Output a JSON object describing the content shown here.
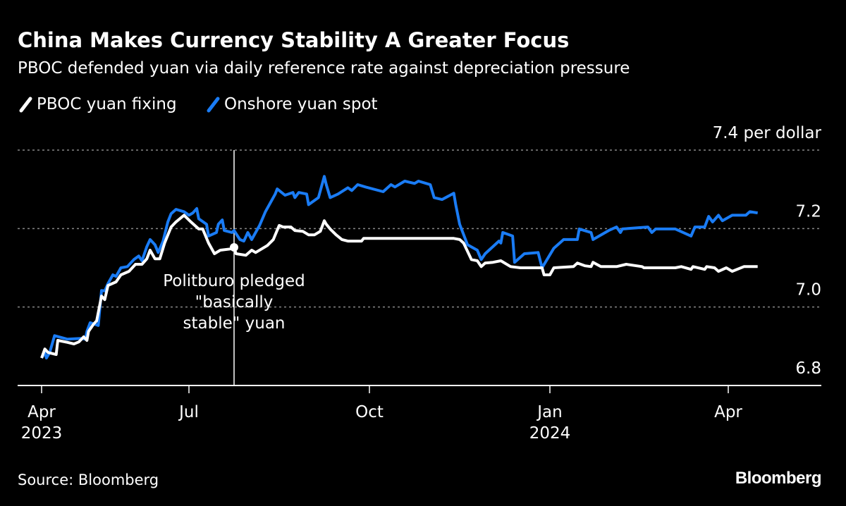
{
  "title": "China Makes Currency Stability A Greater Focus",
  "subtitle": "PBOC defended yuan via daily reference rate against depreciation pressure",
  "source": "Source: Bloomberg",
  "logo": "Bloomberg",
  "colors": {
    "fixing": "#ffffff",
    "spot": "#1a7cf5",
    "background": "#000000",
    "grid": "#888888"
  },
  "chart_data": {
    "type": "line",
    "title": "China Makes Currency Stability A Greater Focus",
    "ylabel": "per dollar",
    "ylim": [
      6.8,
      7.4
    ],
    "yticks": [
      {
        "value": 7.4,
        "label": "7.4 per dollar"
      },
      {
        "value": 7.2,
        "label": "7.2"
      },
      {
        "value": 7.0,
        "label": "7.0"
      },
      {
        "value": 6.8,
        "label": "6.8"
      }
    ],
    "xticks": [
      {
        "date": "2023-04-01",
        "label": "Apr",
        "year": "2023"
      },
      {
        "date": "2023-07-01",
        "label": "Jul",
        "year": ""
      },
      {
        "date": "2023-10-01",
        "label": "Oct",
        "year": ""
      },
      {
        "date": "2024-01-01",
        "label": "Jan",
        "year": "2024"
      },
      {
        "date": "2024-04-01",
        "label": "Apr",
        "year": ""
      }
    ],
    "grid": true,
    "legend": "top-left",
    "annotation": {
      "date": "2023-07-24",
      "value": 7.152,
      "lines": [
        "Politburo pledged",
        "\"basically",
        "stable\" yuan"
      ]
    },
    "series": [
      {
        "name": "PBOC yuan fixing",
        "color": "#ffffff",
        "points": [
          [
            "2023-04-01",
            6.87
          ],
          [
            "2023-04-03",
            6.893
          ],
          [
            "2023-04-05",
            6.884
          ],
          [
            "2023-04-10",
            6.879
          ],
          [
            "2023-04-11",
            6.915
          ],
          [
            "2023-04-17",
            6.91
          ],
          [
            "2023-04-21",
            6.906
          ],
          [
            "2023-04-24",
            6.911
          ],
          [
            "2023-04-27",
            6.924
          ],
          [
            "2023-04-29",
            6.915
          ],
          [
            "2023-04-30",
            6.938
          ],
          [
            "2023-05-03",
            6.956
          ],
          [
            "2023-05-05",
            6.965
          ],
          [
            "2023-05-08",
            7.028
          ],
          [
            "2023-05-10",
            7.019
          ],
          [
            "2023-05-12",
            7.055
          ],
          [
            "2023-05-17",
            7.064
          ],
          [
            "2023-05-20",
            7.082
          ],
          [
            "2023-05-25",
            7.091
          ],
          [
            "2023-05-29",
            7.109
          ],
          [
            "2023-06-02",
            7.109
          ],
          [
            "2023-06-05",
            7.123
          ],
          [
            "2023-06-07",
            7.145
          ],
          [
            "2023-06-10",
            7.123
          ],
          [
            "2023-06-13",
            7.123
          ],
          [
            "2023-06-16",
            7.163
          ],
          [
            "2023-06-20",
            7.204
          ],
          [
            "2023-06-23",
            7.217
          ],
          [
            "2023-06-28",
            7.234
          ],
          [
            "2023-07-02",
            7.217
          ],
          [
            "2023-07-06",
            7.199
          ],
          [
            "2023-07-08",
            7.199
          ],
          [
            "2023-07-11",
            7.163
          ],
          [
            "2023-07-14",
            7.136
          ],
          [
            "2023-07-17",
            7.145
          ],
          [
            "2023-07-22",
            7.148
          ],
          [
            "2023-07-24",
            7.152
          ],
          [
            "2023-07-25",
            7.136
          ],
          [
            "2023-07-30",
            7.132
          ],
          [
            "2023-08-02",
            7.145
          ],
          [
            "2023-08-04",
            7.139
          ],
          [
            "2023-08-10",
            7.157
          ],
          [
            "2023-08-13",
            7.172
          ],
          [
            "2023-08-16",
            7.208
          ],
          [
            "2023-08-18",
            7.204
          ],
          [
            "2023-08-22",
            7.204
          ],
          [
            "2023-08-24",
            7.195
          ],
          [
            "2023-08-28",
            7.193
          ],
          [
            "2023-08-31",
            7.184
          ],
          [
            "2023-09-03",
            7.184
          ],
          [
            "2023-09-06",
            7.193
          ],
          [
            "2023-09-08",
            7.22
          ],
          [
            "2023-09-09",
            7.211
          ],
          [
            "2023-09-11",
            7.199
          ],
          [
            "2023-09-14",
            7.184
          ],
          [
            "2023-09-17",
            7.172
          ],
          [
            "2023-09-20",
            7.168
          ],
          [
            "2023-09-27",
            7.168
          ],
          [
            "2023-09-28",
            7.175
          ],
          [
            "2023-11-13",
            7.175
          ],
          [
            "2023-11-16",
            7.172
          ],
          [
            "2023-11-18",
            7.163
          ],
          [
            "2023-11-22",
            7.121
          ],
          [
            "2023-11-25",
            7.118
          ],
          [
            "2023-11-27",
            7.103
          ],
          [
            "2023-11-29",
            7.112
          ],
          [
            "2023-12-03",
            7.114
          ],
          [
            "2023-12-07",
            7.118
          ],
          [
            "2023-12-12",
            7.103
          ],
          [
            "2023-12-17",
            7.1
          ],
          [
            "2023-12-28",
            7.1
          ],
          [
            "2023-12-29",
            7.082
          ],
          [
            "2024-01-01",
            7.082
          ],
          [
            "2024-01-03",
            7.1
          ],
          [
            "2024-01-13",
            7.103
          ],
          [
            "2024-01-15",
            7.112
          ],
          [
            "2024-01-19",
            7.105
          ],
          [
            "2024-01-22",
            7.103
          ],
          [
            "2024-01-23",
            7.114
          ],
          [
            "2024-01-27",
            7.103
          ],
          [
            "2024-02-04",
            7.103
          ],
          [
            "2024-02-09",
            7.109
          ],
          [
            "2024-02-17",
            7.103
          ],
          [
            "2024-02-18",
            7.1
          ],
          [
            "2024-03-05",
            7.1
          ],
          [
            "2024-03-08",
            7.103
          ],
          [
            "2024-03-13",
            7.096
          ],
          [
            "2024-03-14",
            7.103
          ],
          [
            "2024-03-20",
            7.096
          ],
          [
            "2024-03-21",
            7.103
          ],
          [
            "2024-03-25",
            7.1
          ],
          [
            "2024-03-27",
            7.091
          ],
          [
            "2024-03-31",
            7.1
          ],
          [
            "2024-04-03",
            7.091
          ],
          [
            "2024-04-09",
            7.103
          ],
          [
            "2024-04-16",
            7.103
          ]
        ]
      },
      {
        "name": "Onshore yuan spot",
        "color": "#1a7cf5",
        "points": [
          [
            "2023-04-01",
            6.87
          ],
          [
            "2023-04-03",
            6.884
          ],
          [
            "2023-04-04",
            6.87
          ],
          [
            "2023-04-06",
            6.884
          ],
          [
            "2023-04-09",
            6.927
          ],
          [
            "2023-04-17",
            6.918
          ],
          [
            "2023-04-25",
            6.92
          ],
          [
            "2023-04-28",
            6.918
          ],
          [
            "2023-04-29",
            6.938
          ],
          [
            "2023-05-01",
            6.96
          ],
          [
            "2023-05-06",
            6.953
          ],
          [
            "2023-05-08",
            7.042
          ],
          [
            "2023-05-10",
            7.041
          ],
          [
            "2023-05-12",
            7.06
          ],
          [
            "2023-05-15",
            7.082
          ],
          [
            "2023-05-17",
            7.078
          ],
          [
            "2023-05-20",
            7.1
          ],
          [
            "2023-05-24",
            7.103
          ],
          [
            "2023-05-28",
            7.121
          ],
          [
            "2023-05-31",
            7.13
          ],
          [
            "2023-06-02",
            7.118
          ],
          [
            "2023-06-05",
            7.154
          ],
          [
            "2023-06-07",
            7.172
          ],
          [
            "2023-06-10",
            7.159
          ],
          [
            "2023-06-12",
            7.139
          ],
          [
            "2023-06-15",
            7.168
          ],
          [
            "2023-06-18",
            7.217
          ],
          [
            "2023-06-20",
            7.238
          ],
          [
            "2023-06-23",
            7.249
          ],
          [
            "2023-06-28",
            7.243
          ],
          [
            "2023-07-01",
            7.234
          ],
          [
            "2023-07-03",
            7.24
          ],
          [
            "2023-07-05",
            7.251
          ],
          [
            "2023-07-06",
            7.225
          ],
          [
            "2023-07-10",
            7.211
          ],
          [
            "2023-07-11",
            7.181
          ],
          [
            "2023-07-15",
            7.19
          ],
          [
            "2023-07-16",
            7.211
          ],
          [
            "2023-07-18",
            7.222
          ],
          [
            "2023-07-19",
            7.195
          ],
          [
            "2023-07-23",
            7.19
          ],
          [
            "2023-07-24",
            7.195
          ],
          [
            "2023-07-27",
            7.172
          ],
          [
            "2023-07-29",
            7.168
          ],
          [
            "2023-07-31",
            7.19
          ],
          [
            "2023-08-02",
            7.172
          ],
          [
            "2023-08-06",
            7.208
          ],
          [
            "2023-08-09",
            7.243
          ],
          [
            "2023-08-14",
            7.288
          ],
          [
            "2023-08-15",
            7.301
          ],
          [
            "2023-08-19",
            7.285
          ],
          [
            "2023-08-23",
            7.292
          ],
          [
            "2023-08-24",
            7.279
          ],
          [
            "2023-08-26",
            7.292
          ],
          [
            "2023-08-30",
            7.288
          ],
          [
            "2023-08-31",
            7.261
          ],
          [
            "2023-09-05",
            7.279
          ],
          [
            "2023-09-08",
            7.333
          ],
          [
            "2023-09-09",
            7.312
          ],
          [
            "2023-09-11",
            7.279
          ],
          [
            "2023-09-15",
            7.288
          ],
          [
            "2023-09-20",
            7.304
          ],
          [
            "2023-09-22",
            7.297
          ],
          [
            "2023-09-25",
            7.312
          ],
          [
            "2023-09-29",
            7.306
          ],
          [
            "2023-10-08",
            7.294
          ],
          [
            "2023-10-12",
            7.312
          ],
          [
            "2023-10-14",
            7.306
          ],
          [
            "2023-10-19",
            7.321
          ],
          [
            "2023-10-24",
            7.315
          ],
          [
            "2023-10-26",
            7.321
          ],
          [
            "2023-10-30",
            7.315
          ],
          [
            "2023-11-01",
            7.312
          ],
          [
            "2023-11-03",
            7.279
          ],
          [
            "2023-11-07",
            7.274
          ],
          [
            "2023-11-13",
            7.29
          ],
          [
            "2023-11-14",
            7.261
          ],
          [
            "2023-11-16",
            7.211
          ],
          [
            "2023-11-20",
            7.159
          ],
          [
            "2023-11-25",
            7.145
          ],
          [
            "2023-11-27",
            7.121
          ],
          [
            "2023-11-29",
            7.136
          ],
          [
            "2023-12-06",
            7.168
          ],
          [
            "2023-12-07",
            7.163
          ],
          [
            "2023-12-08",
            7.19
          ],
          [
            "2023-12-13",
            7.181
          ],
          [
            "2023-12-14",
            7.114
          ],
          [
            "2023-12-19",
            7.136
          ],
          [
            "2023-12-26",
            7.139
          ],
          [
            "2023-12-28",
            7.1
          ],
          [
            "2024-01-03",
            7.15
          ],
          [
            "2024-01-08",
            7.172
          ],
          [
            "2024-01-15",
            7.172
          ],
          [
            "2024-01-16",
            7.199
          ],
          [
            "2024-01-22",
            7.19
          ],
          [
            "2024-01-23",
            7.172
          ],
          [
            "2024-01-31",
            7.195
          ],
          [
            "2024-02-04",
            7.204
          ],
          [
            "2024-02-06",
            7.19
          ],
          [
            "2024-02-07",
            7.199
          ],
          [
            "2024-02-20",
            7.204
          ],
          [
            "2024-02-22",
            7.19
          ],
          [
            "2024-02-24",
            7.199
          ],
          [
            "2024-03-05",
            7.199
          ],
          [
            "2024-03-13",
            7.181
          ],
          [
            "2024-03-15",
            7.204
          ],
          [
            "2024-03-20",
            7.204
          ],
          [
            "2024-03-22",
            7.231
          ],
          [
            "2024-03-24",
            7.217
          ],
          [
            "2024-03-27",
            7.234
          ],
          [
            "2024-03-29",
            7.22
          ],
          [
            "2024-04-03",
            7.234
          ],
          [
            "2024-04-10",
            7.234
          ],
          [
            "2024-04-12",
            7.243
          ],
          [
            "2024-04-16",
            7.24
          ]
        ]
      }
    ]
  }
}
